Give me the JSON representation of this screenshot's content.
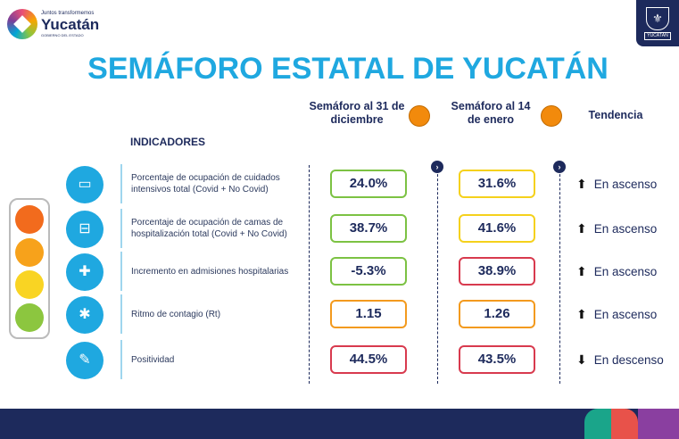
{
  "logo": {
    "tagline": "Juntos transformemos",
    "name": "Yucatán",
    "sub": "GOBIERNO DEL ESTADO"
  },
  "crest": {
    "text": "YUCATÁN"
  },
  "title": "SEMÁFORO ESTATAL DE YUCATÁN",
  "headers": {
    "col1": "Semáforo al 31 de diciembre",
    "col1_color": "#f28a0c",
    "col2": "Semáforo al 14 de enero",
    "col2_color": "#f28a0c",
    "trend": "Tendencia",
    "indicators": "INDICADORES"
  },
  "colors": {
    "green": "#7cc243",
    "yellow": "#f5d11c",
    "orange": "#f39a1e",
    "red": "#d83a4e",
    "navy": "#1d2a5c",
    "cyan": "#1fa8e0"
  },
  "traffic_light": [
    "#f26b1d",
    "#f7a21b",
    "#f9d423",
    "#8cc63f"
  ],
  "rows": [
    {
      "icon": "icu-bed-icon",
      "label": "Porcentaje de ocupación de cuidados intensivos total (Covid + No Covid)",
      "v1": "24.0%",
      "c1": "#7cc243",
      "v2": "31.6%",
      "c2": "#f5d11c",
      "trend": "En ascenso",
      "dir": "up"
    },
    {
      "icon": "hospital-bed-icon",
      "label": "Porcentaje de ocupación de camas de hospitalización total (Covid + No Covid)",
      "v1": "38.7%",
      "c1": "#7cc243",
      "v2": "41.6%",
      "c2": "#f5d11c",
      "trend": "En ascenso",
      "dir": "up"
    },
    {
      "icon": "ambulance-icon",
      "label": "Incremento en admisiones hospitalarias",
      "v1": "-5.3%",
      "c1": "#7cc243",
      "v2": "38.9%",
      "c2": "#d83a4e",
      "trend": "En ascenso",
      "dir": "up"
    },
    {
      "icon": "contagion-icon",
      "label": "Ritmo de contagio (Rt)",
      "v1": "1.15",
      "c1": "#f39a1e",
      "v2": "1.26",
      "c2": "#f39a1e",
      "trend": "En ascenso",
      "dir": "up"
    },
    {
      "icon": "test-swab-icon",
      "label": "Positividad",
      "v1": "44.5%",
      "c1": "#d83a4e",
      "v2": "43.5%",
      "c2": "#d83a4e",
      "trend": "En descenso",
      "dir": "down"
    }
  ]
}
